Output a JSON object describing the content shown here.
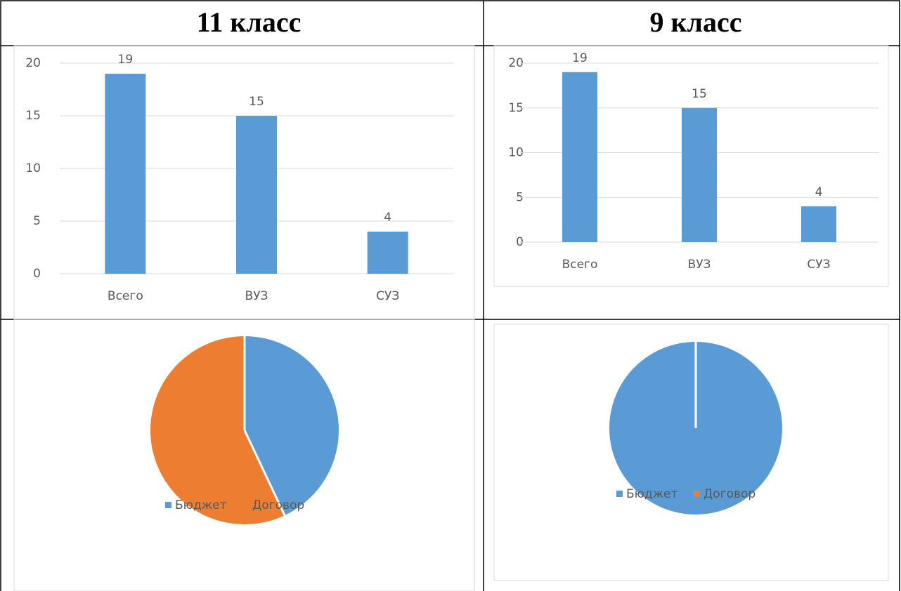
{
  "table": {
    "headers": [
      "11 класс",
      "9 класс"
    ]
  },
  "chart_data": [
    {
      "type": "bar",
      "categories": [
        "Всего",
        "ВУЗ",
        "СУЗ"
      ],
      "values": [
        19,
        15,
        4
      ],
      "color": "#5b9bd5",
      "ylim": [
        0,
        20
      ],
      "yticks": [
        0,
        5,
        10,
        15,
        20
      ],
      "grid": true
    },
    {
      "type": "bar",
      "categories": [
        "Всего",
        "ВУЗ",
        "СУЗ"
      ],
      "values": [
        19,
        15,
        4
      ],
      "color": "#5b9bd5",
      "ylim": [
        0,
        20
      ],
      "yticks": [
        0,
        5,
        10,
        15,
        20
      ],
      "grid": true
    },
    {
      "type": "pie",
      "categories": [
        "Бюджет",
        "Договор"
      ],
      "values": [
        43,
        57
      ],
      "colors": [
        "#5b9bd5",
        "#ed7d31"
      ],
      "legend": "bottom"
    },
    {
      "type": "pie",
      "categories": [
        "Бюджет",
        "Договор"
      ],
      "values": [
        100,
        0
      ],
      "colors": [
        "#5b9bd5",
        "#ed7d31"
      ],
      "legend": "bottom"
    }
  ]
}
